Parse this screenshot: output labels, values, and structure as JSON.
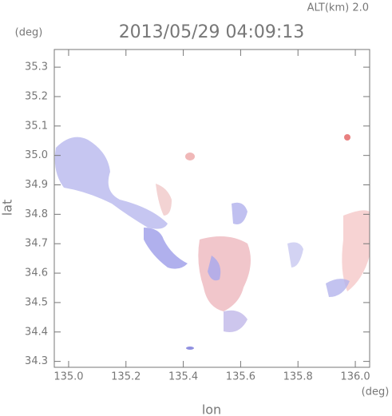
{
  "chart_data": {
    "type": "map",
    "title": "2013/05/29 04:09:13",
    "subtitle": "ALT(km) 2.0",
    "y_unit": "(deg)",
    "x_unit": "(deg)",
    "ylabel": "lat",
    "xlabel": "lon",
    "xlim": [
      134.95,
      136.05
    ],
    "ylim": [
      34.28,
      35.36
    ],
    "xticks": [
      {
        "value": 135,
        "label": "135.0"
      },
      135.2,
      135.4,
      135.6,
      135.8,
      {
        "value": 136,
        "label": "136.0"
      }
    ],
    "yticks": [
      34.3,
      34.4,
      34.5,
      34.6,
      34.7,
      34.8,
      34.9,
      {
        "value": 35,
        "label": "35.0"
      },
      35.1,
      35.2,
      35.3
    ]
  }
}
